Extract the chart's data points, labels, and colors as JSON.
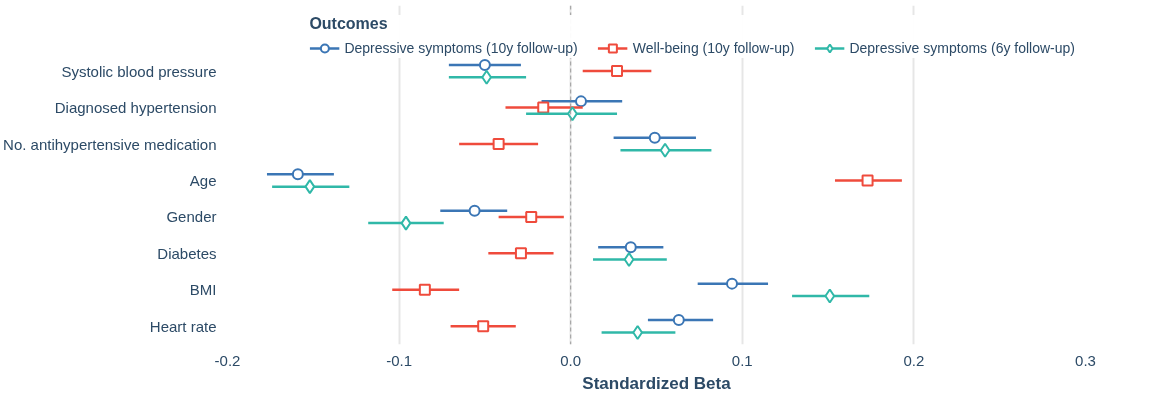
{
  "chart_data": {
    "type": "scatter",
    "orientation": "horizontal",
    "xlabel": "Standardized Beta",
    "legend_title": "Outcomes",
    "legend": "top",
    "grid": "x",
    "categories": [
      "Systolic blood pressure",
      "Diagnosed hypertension",
      "No. antihypertensive medication",
      "Age",
      "Gender",
      "Diabetes",
      "BMI",
      "Heart rate"
    ],
    "xlim": [
      -0.2,
      0.3
    ],
    "xticks": [
      -0.2,
      -0.1,
      {
        "value": 0,
        "label": "0.0"
      },
      0.1,
      0.2,
      0.3
    ],
    "ref_lines": [
      {
        "axis": "x",
        "value": 0,
        "color": "#999999",
        "line_style": "dashed"
      }
    ],
    "series": [
      {
        "name": "Depressive symptoms (10y follow-up)",
        "color": "#3b76b5",
        "marker": "circle",
        "values": [
          -0.05,
          0.006,
          0.049,
          -0.159,
          -0.056,
          0.035,
          0.094,
          0.063
        ],
        "errors": [
          [
            -0.071,
            -0.029
          ],
          [
            -0.017,
            0.03
          ],
          [
            0.025,
            0.073
          ],
          [
            -0.177,
            -0.138
          ],
          [
            -0.076,
            -0.037
          ],
          [
            0.016,
            0.054
          ],
          [
            0.074,
            0.115
          ],
          [
            0.045,
            0.083
          ]
        ]
      },
      {
        "name": "Well-being (10y follow-up)",
        "color": "#ef4b3c",
        "marker": "square",
        "values": [
          0.027,
          -0.016,
          -0.042,
          0.173,
          -0.023,
          -0.029,
          -0.085,
          -0.051
        ],
        "errors": [
          [
            0.007,
            0.047
          ],
          [
            -0.038,
            0.007
          ],
          [
            -0.065,
            -0.019
          ],
          [
            0.154,
            0.193
          ],
          [
            -0.042,
            -0.004
          ],
          [
            -0.048,
            -0.01
          ],
          [
            -0.104,
            -0.065
          ],
          [
            -0.07,
            -0.032
          ]
        ]
      },
      {
        "name": "Depressive symptoms (6y follow-up)",
        "color": "#30b8a8",
        "marker": "diamond",
        "values": [
          -0.049,
          0.001,
          0.055,
          -0.152,
          -0.096,
          0.034,
          0.151,
          0.039
        ],
        "errors": [
          [
            -0.071,
            -0.026
          ],
          [
            -0.026,
            0.027
          ],
          [
            0.029,
            0.082
          ],
          [
            -0.174,
            -0.129
          ],
          [
            -0.118,
            -0.074
          ],
          [
            0.013,
            0.056
          ],
          [
            0.129,
            0.174
          ],
          [
            0.018,
            0.061
          ]
        ]
      }
    ]
  }
}
